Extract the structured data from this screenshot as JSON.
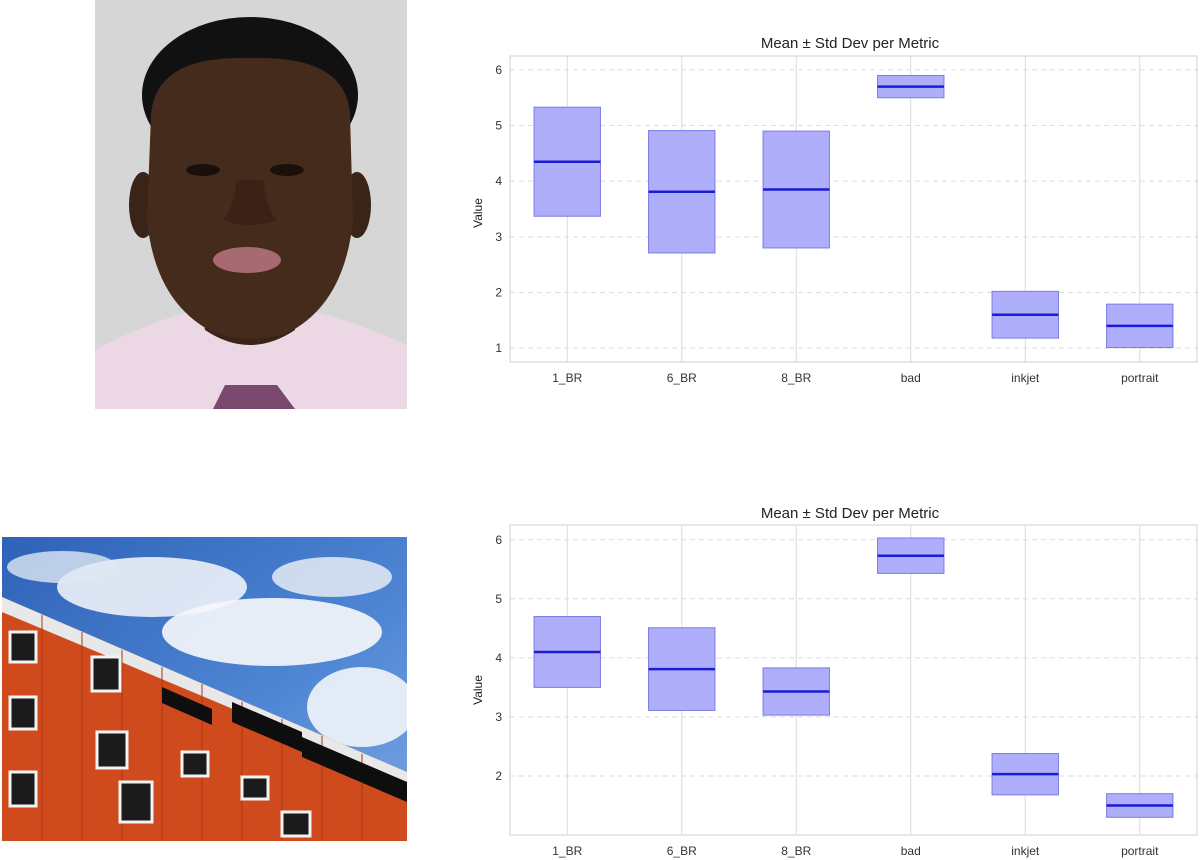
{
  "images": [
    {
      "subject": "Portrait photograph of a young man in a pink shirt"
    },
    {
      "subject": "Low-angle photograph of an orange apartment building against a blue cloudy sky"
    }
  ],
  "chart_data": [
    {
      "type": "bar",
      "subtype": "mean-std-box",
      "title": "Mean ± Std Dev per Metric",
      "xlabel": "",
      "ylabel": "Value",
      "categories": [
        "1_BR",
        "6_BR",
        "8_BR",
        "bad",
        "inkjet",
        "portrait"
      ],
      "mean": [
        4.35,
        3.81,
        3.85,
        5.7,
        1.6,
        1.4
      ],
      "std": [
        0.98,
        1.1,
        1.05,
        0.2,
        0.42,
        0.39
      ],
      "ylim": [
        0.75,
        6.25
      ],
      "yticks": [
        1,
        2,
        3,
        4,
        5,
        6
      ],
      "grid": true,
      "colors": {
        "fill": "#aeaefb",
        "edge": "#7b7be6",
        "mean_line": "#1c1cd6",
        "grid": "#dcdcdc"
      }
    },
    {
      "type": "bar",
      "subtype": "mean-std-box",
      "title": "Mean ± Std Dev per Metric",
      "xlabel": "",
      "ylabel": "Value",
      "categories": [
        "1_BR",
        "6_BR",
        "8_BR",
        "bad",
        "inkjet",
        "portrait"
      ],
      "mean": [
        4.1,
        3.81,
        3.43,
        5.73,
        2.03,
        1.5
      ],
      "std": [
        0.6,
        0.7,
        0.4,
        0.3,
        0.35,
        0.2
      ],
      "ylim": [
        1.0,
        6.25
      ],
      "yticks": [
        2,
        3,
        4,
        5,
        6
      ],
      "grid": true,
      "colors": {
        "fill": "#aeaefb",
        "edge": "#7b7be6",
        "mean_line": "#1c1cd6",
        "grid": "#dcdcdc"
      }
    }
  ]
}
